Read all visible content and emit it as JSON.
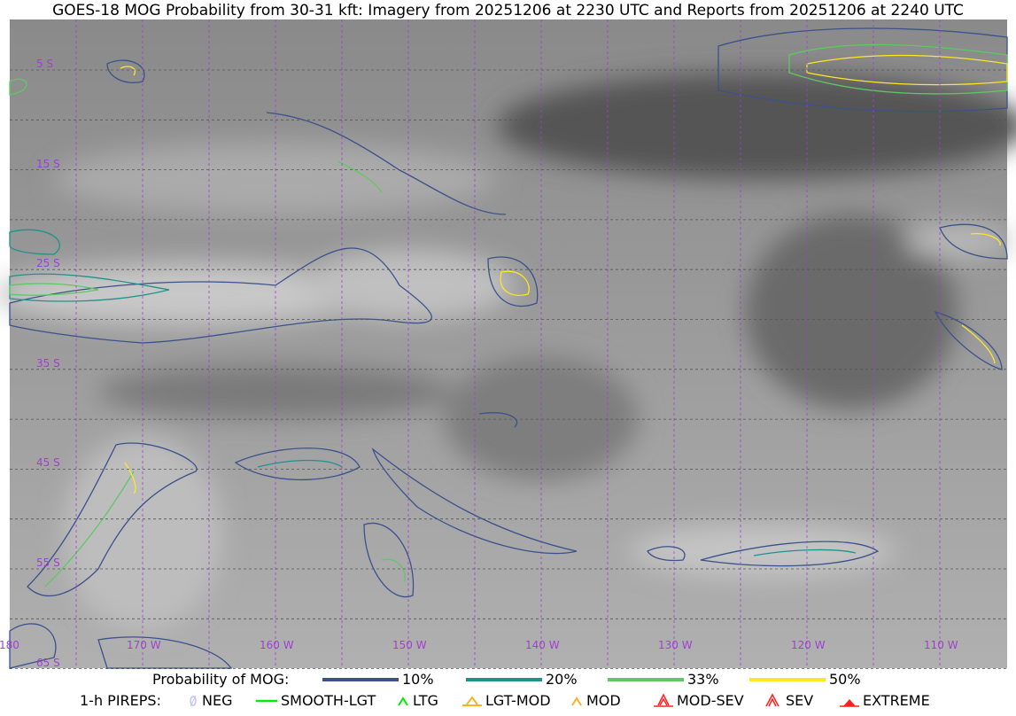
{
  "title": "GOES-18 MOG Probability from 30-31 kft: Imagery from 20251206 at 2230 UTC and Reports from 20251206 at 2240 UTC",
  "map": {
    "latitude_labels": [
      "5 S",
      "15 S",
      "25 S",
      "35 S",
      "45 S",
      "55 S",
      "65 S"
    ],
    "longitude_labels": [
      "180",
      "170 W",
      "160 W",
      "150 W",
      "140 W",
      "130 W",
      "120 W",
      "110 W"
    ],
    "grid_color": "#a040d0"
  },
  "legend": {
    "probability_label": "Probability of MOG:",
    "probability_levels": [
      {
        "label": "10%",
        "color": "#3b528b"
      },
      {
        "label": "20%",
        "color": "#21918c"
      },
      {
        "label": "33%",
        "color": "#5ec962"
      },
      {
        "label": "50%",
        "color": "#fde725"
      }
    ],
    "pireps_label": "1-h PIREPS:",
    "pireps": [
      {
        "label": "NEG",
        "color": "#c0c0ff",
        "icon": "null-circle-icon"
      },
      {
        "label": "SMOOTH-LGT",
        "color": "#00ee00",
        "icon": "dash-icon"
      },
      {
        "label": "LTG",
        "color": "#00ee00",
        "icon": "caret-icon"
      },
      {
        "label": "LGT-MOD",
        "color": "#ffb020",
        "icon": "caret-bar-icon"
      },
      {
        "label": "MOD",
        "color": "#ffb020",
        "icon": "caret-icon"
      },
      {
        "label": "MOD-SEV",
        "color": "#ff2020",
        "icon": "double-caret-bar-icon"
      },
      {
        "label": "SEV",
        "color": "#ff2020",
        "icon": "double-caret-icon"
      },
      {
        "label": "EXTREME",
        "color": "#ff2020",
        "icon": "filled-triangle-icon"
      }
    ]
  }
}
